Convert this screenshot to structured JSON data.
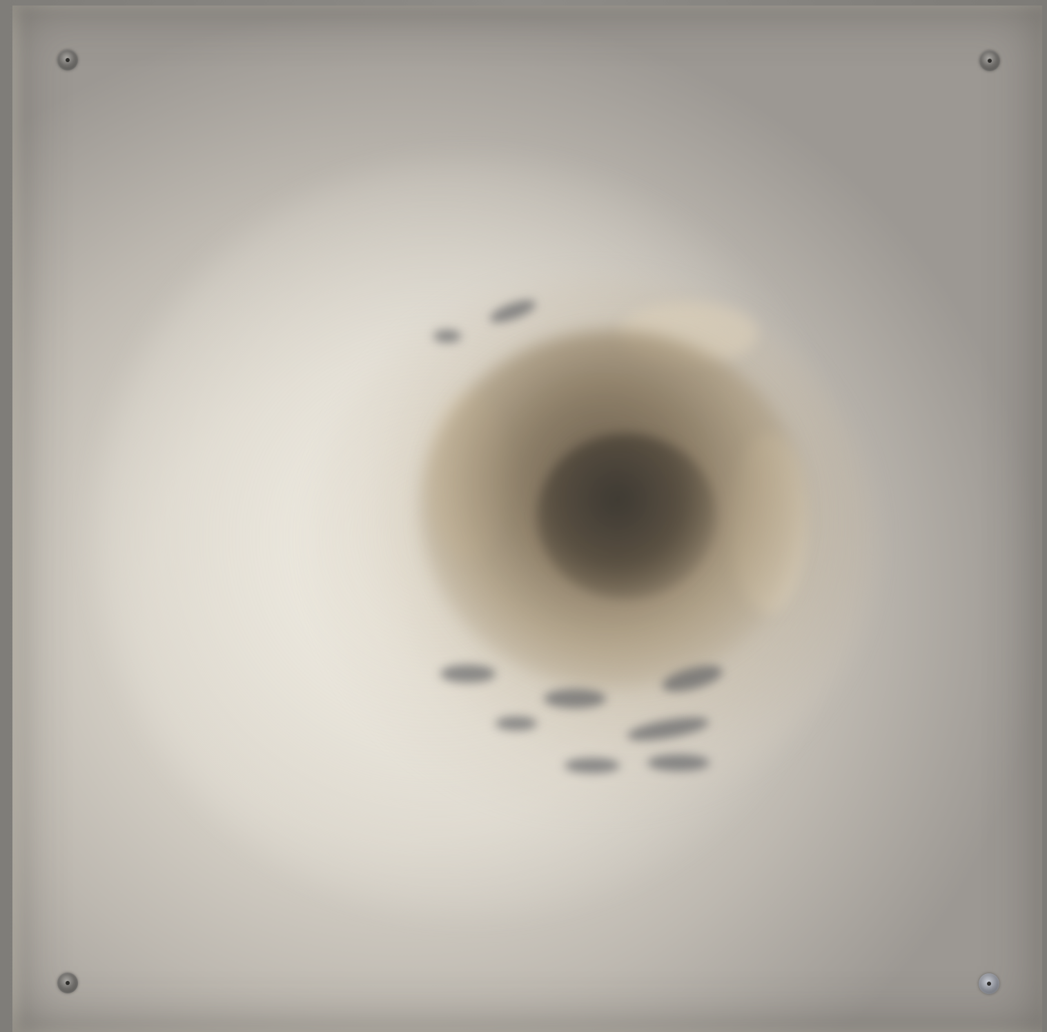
{
  "image": {
    "subject": "backlit-panel-with-vortex",
    "colors": {
      "panel_light": "#e6e2d7",
      "panel_edge": "#9c9893",
      "vortex_dark": "#3c3832",
      "vortex_mid": "#786850",
      "frame": "#8b8985"
    },
    "icons": [
      "screw-icon",
      "screw-icon",
      "screw-icon",
      "screw-icon"
    ]
  }
}
